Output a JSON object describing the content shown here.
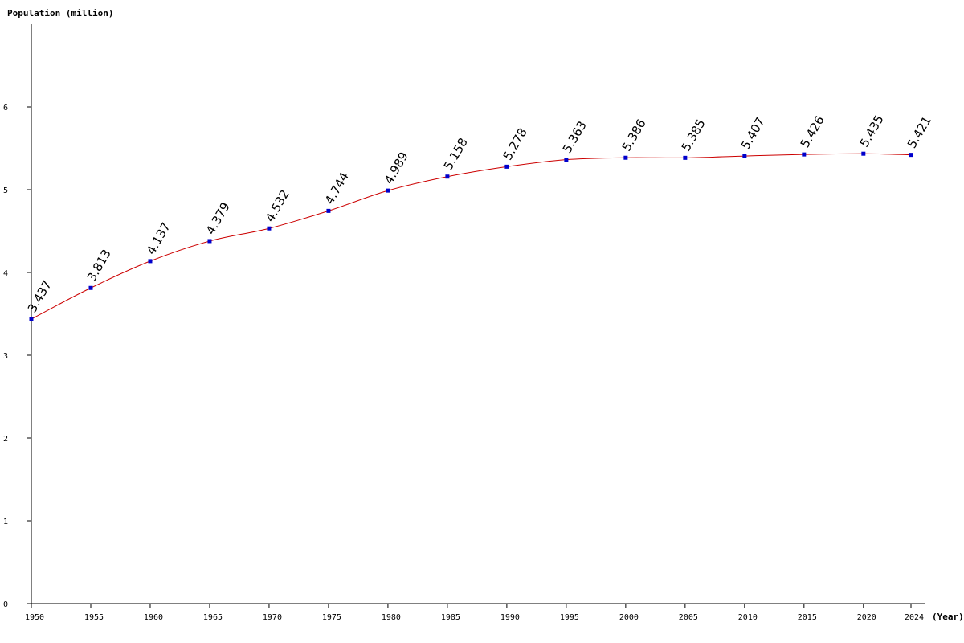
{
  "chart_data": {
    "type": "line",
    "ylabel": "Population (million)",
    "xlabel": "(Year)",
    "x": [
      1950,
      1955,
      1960,
      1965,
      1970,
      1975,
      1980,
      1985,
      1990,
      1995,
      2000,
      2005,
      2010,
      2015,
      2020,
      2024
    ],
    "series": [
      {
        "values": [
          3.437,
          3.813,
          4.137,
          4.379,
          4.532,
          4.744,
          4.989,
          5.158,
          5.278,
          5.363,
          5.386,
          5.385,
          5.407,
          5.426,
          5.435,
          5.421
        ],
        "labels": [
          "3.437",
          "3.813",
          "4.137",
          "4.379",
          "4.532",
          "4.744",
          "4.989",
          "5.158",
          "5.278",
          "5.363",
          "5.386",
          "5.385",
          "5.407",
          "5.426",
          "5.435",
          "5.421"
        ]
      }
    ],
    "y_ticks": [
      "0",
      "1",
      "2",
      "3",
      "4",
      "5",
      "6"
    ],
    "x_ticks": [
      "1950",
      "1955",
      "1960",
      "1965",
      "1970",
      "1975",
      "1980",
      "1985",
      "1990",
      "1995",
      "2000",
      "2005",
      "2010",
      "2015",
      "2020",
      "2024"
    ],
    "ylim": [
      0,
      7
    ],
    "xlim": [
      1950,
      2024
    ],
    "grid": false,
    "colors": {
      "line": "#cc0000",
      "marker": "#0000cc",
      "axis": "#000000"
    }
  }
}
